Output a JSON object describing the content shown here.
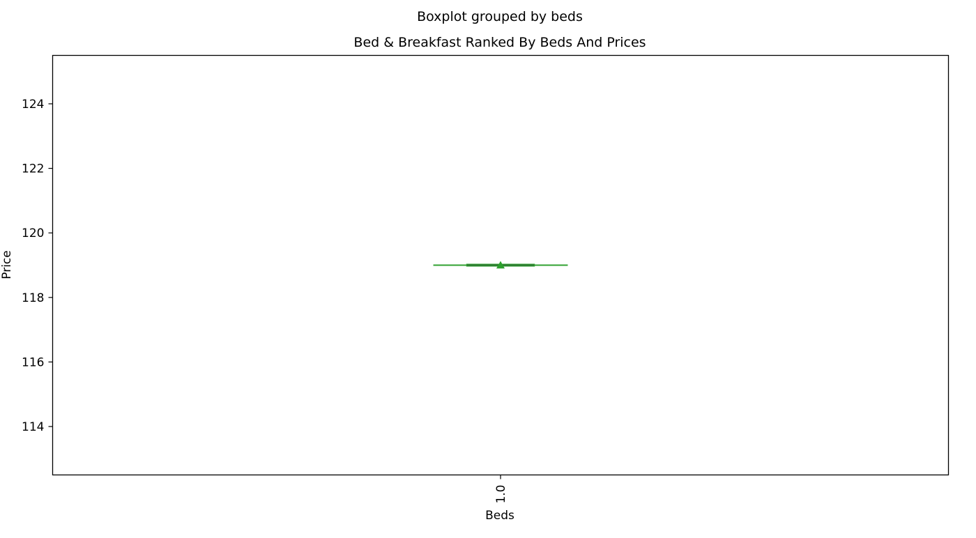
{
  "chart_data": {
    "type": "box",
    "suptitle": "Boxplot grouped by beds",
    "title": "Bed & Breakfast Ranked By Beds And Prices",
    "xlabel": "Beds",
    "ylabel": "Price",
    "categories": [
      "1.0"
    ],
    "boxes": [
      {
        "category": "1.0",
        "min": 119.0,
        "q1": 119.0,
        "median": 119.0,
        "q3": 119.0,
        "max": 119.0,
        "mean": 119.0
      }
    ],
    "ylim": [
      112.5,
      125.5
    ],
    "yticks": [
      114,
      116,
      118,
      120,
      122,
      124
    ],
    "ytick_labels": [
      "114",
      "116",
      "118",
      "120",
      "122",
      "124"
    ],
    "grid": false,
    "colors": {
      "box": "#2ca02c",
      "median": "#2e7d32",
      "mean_marker": "#2ca02c",
      "frame": "#000000"
    }
  }
}
